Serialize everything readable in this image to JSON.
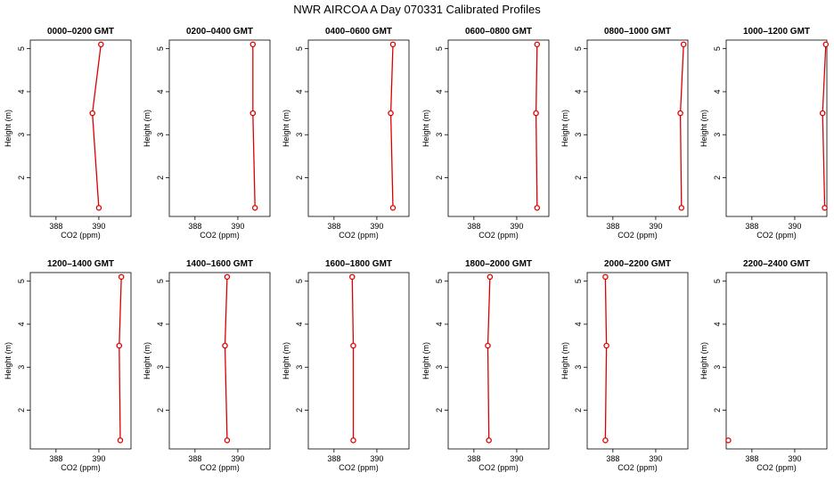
{
  "title": "NWR AIRCOA A  Day 070331  Calibrated Profiles",
  "colors": {
    "series": "#dd0000",
    "axes": "#000000"
  },
  "chart_data": [
    {
      "type": "line",
      "title": "0000–0200 GMT",
      "xlabel": "CO2 (ppm)",
      "ylabel": "Height (m)",
      "xlim": [
        386.8,
        391.5
      ],
      "ylim": [
        1.1,
        5.2
      ],
      "xticks": [
        388,
        390
      ],
      "yticks": [
        2,
        3,
        4,
        5
      ],
      "series": [
        {
          "x": [
            390.0,
            389.7,
            390.1
          ],
          "y": [
            1.3,
            3.5,
            5.1
          ]
        }
      ]
    },
    {
      "type": "line",
      "title": "0200–0400 GMT",
      "xlabel": "CO2 (ppm)",
      "ylabel": "Height (m)",
      "xlim": [
        386.8,
        391.5
      ],
      "ylim": [
        1.1,
        5.2
      ],
      "xticks": [
        388,
        390
      ],
      "yticks": [
        2,
        3,
        4,
        5
      ],
      "series": [
        {
          "x": [
            390.8,
            390.7,
            390.7
          ],
          "y": [
            1.3,
            3.5,
            5.1
          ]
        }
      ]
    },
    {
      "type": "line",
      "title": "0400–0600 GMT",
      "xlabel": "CO2 (ppm)",
      "ylabel": "Height (m)",
      "xlim": [
        386.8,
        391.5
      ],
      "ylim": [
        1.1,
        5.2
      ],
      "xticks": [
        388,
        390
      ],
      "yticks": [
        2,
        3,
        4,
        5
      ],
      "series": [
        {
          "x": [
            390.75,
            390.65,
            390.75
          ],
          "y": [
            1.3,
            3.5,
            5.1
          ]
        }
      ]
    },
    {
      "type": "line",
      "title": "0600–0800 GMT",
      "xlabel": "CO2 (ppm)",
      "ylabel": "Height (m)",
      "xlim": [
        386.8,
        391.5
      ],
      "ylim": [
        1.1,
        5.2
      ],
      "xticks": [
        388,
        390
      ],
      "yticks": [
        2,
        3,
        4,
        5
      ],
      "series": [
        {
          "x": [
            390.95,
            390.9,
            390.95
          ],
          "y": [
            1.3,
            3.5,
            5.1
          ]
        }
      ]
    },
    {
      "type": "line",
      "title": "0800–1000 GMT",
      "xlabel": "CO2 (ppm)",
      "ylabel": "Height (m)",
      "xlim": [
        386.8,
        391.5
      ],
      "ylim": [
        1.1,
        5.2
      ],
      "xticks": [
        388,
        390
      ],
      "yticks": [
        2,
        3,
        4,
        5
      ],
      "series": [
        {
          "x": [
            391.2,
            391.15,
            391.3
          ],
          "y": [
            1.3,
            3.5,
            5.1
          ]
        }
      ]
    },
    {
      "type": "line",
      "title": "1000–1200 GMT",
      "xlabel": "CO2 (ppm)",
      "ylabel": "Height (m)",
      "xlim": [
        386.8,
        391.5
      ],
      "ylim": [
        1.1,
        5.2
      ],
      "xticks": [
        388,
        390
      ],
      "yticks": [
        2,
        3,
        4,
        5
      ],
      "series": [
        {
          "x": [
            391.4,
            391.3,
            391.45
          ],
          "y": [
            1.3,
            3.5,
            5.1
          ]
        }
      ]
    },
    {
      "type": "line",
      "title": "1200–1400 GMT",
      "xlabel": "CO2 (ppm)",
      "ylabel": "Height (m)",
      "xlim": [
        386.8,
        391.5
      ],
      "ylim": [
        1.1,
        5.2
      ],
      "xticks": [
        388,
        390
      ],
      "yticks": [
        2,
        3,
        4,
        5
      ],
      "series": [
        {
          "x": [
            391.0,
            390.95,
            391.05
          ],
          "y": [
            1.3,
            3.5,
            5.1
          ]
        }
      ]
    },
    {
      "type": "line",
      "title": "1400–1600 GMT",
      "xlabel": "CO2 (ppm)",
      "ylabel": "Height (m)",
      "xlim": [
        386.8,
        391.5
      ],
      "ylim": [
        1.1,
        5.2
      ],
      "xticks": [
        388,
        390
      ],
      "yticks": [
        2,
        3,
        4,
        5
      ],
      "series": [
        {
          "x": [
            389.5,
            389.4,
            389.5
          ],
          "y": [
            1.3,
            3.5,
            5.1
          ]
        }
      ]
    },
    {
      "type": "line",
      "title": "1600–1800 GMT",
      "xlabel": "CO2 (ppm)",
      "ylabel": "Height (m)",
      "xlim": [
        386.8,
        391.5
      ],
      "ylim": [
        1.1,
        5.2
      ],
      "xticks": [
        388,
        390
      ],
      "yticks": [
        2,
        3,
        4,
        5
      ],
      "series": [
        {
          "x": [
            388.9,
            388.9,
            388.85
          ],
          "y": [
            1.3,
            3.5,
            5.1
          ]
        }
      ]
    },
    {
      "type": "line",
      "title": "1800–2000 GMT",
      "xlabel": "CO2 (ppm)",
      "ylabel": "Height (m)",
      "xlim": [
        386.8,
        391.5
      ],
      "ylim": [
        1.1,
        5.2
      ],
      "xticks": [
        388,
        390
      ],
      "yticks": [
        2,
        3,
        4,
        5
      ],
      "series": [
        {
          "x": [
            388.7,
            388.65,
            388.75
          ],
          "y": [
            1.3,
            3.5,
            5.1
          ]
        }
      ]
    },
    {
      "type": "line",
      "title": "2000–2200 GMT",
      "xlabel": "CO2 (ppm)",
      "ylabel": "Height (m)",
      "xlim": [
        386.8,
        391.5
      ],
      "ylim": [
        1.1,
        5.2
      ],
      "xticks": [
        388,
        390
      ],
      "yticks": [
        2,
        3,
        4,
        5
      ],
      "series": [
        {
          "x": [
            387.65,
            387.7,
            387.65
          ],
          "y": [
            1.3,
            3.5,
            5.1
          ]
        }
      ]
    },
    {
      "type": "line",
      "title": "2200–2400 GMT",
      "xlabel": "CO2 (ppm)",
      "ylabel": "Height (m)",
      "xlim": [
        386.8,
        391.5
      ],
      "ylim": [
        1.1,
        5.2
      ],
      "xticks": [
        388,
        390
      ],
      "yticks": [
        2,
        3,
        4,
        5
      ],
      "series": [
        {
          "x": [
            386.9
          ],
          "y": [
            1.3
          ]
        }
      ]
    }
  ]
}
